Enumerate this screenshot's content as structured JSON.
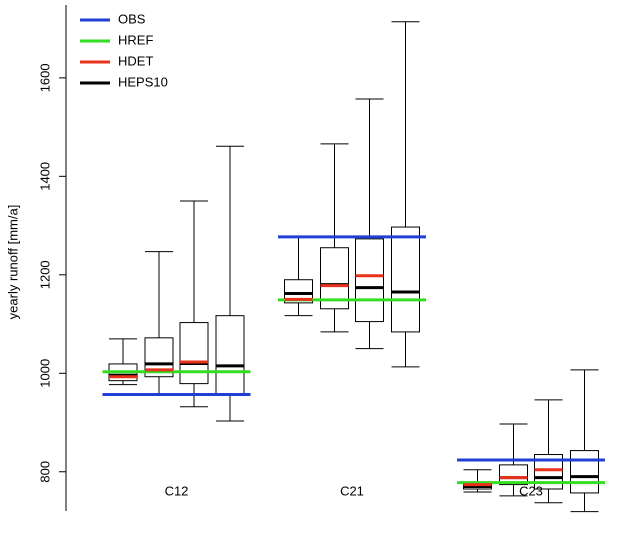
{
  "chart_data": {
    "type": "box",
    "ylabel": "yearly runoff [mm/a]",
    "categories": [
      "C12",
      "C21",
      "C23"
    ],
    "ylim": [
      700,
      1750
    ],
    "yticks": [
      800,
      1000,
      1200,
      1400,
      1600
    ],
    "legend": "top-left",
    "series": [
      {
        "name": "OBS",
        "color": "#1f3fd6",
        "values": [
          957,
          1277,
          824
        ]
      },
      {
        "name": "HREF",
        "color": "#33dd22",
        "values": [
          1003,
          1149,
          778
        ]
      },
      {
        "name": "HDET",
        "color": "#e8321e",
        "values": [
          [
            993,
            1007,
            1023,
            null
          ],
          [
            1150,
            1178,
            1198,
            null
          ],
          [
            774,
            788,
            804,
            null
          ]
        ]
      },
      {
        "name": "HEPS10",
        "color": "#000000",
        "boxes": [
          [
            {
              "low": 977,
              "q1": 985,
              "median": 996,
              "q3": 1019,
              "high": 1070
            },
            {
              "low": 957,
              "q1": 993,
              "median": 1019,
              "q3": 1072,
              "high": 1247
            },
            {
              "low": 932,
              "q1": 979,
              "median": 1020,
              "q3": 1103,
              "high": 1350
            },
            {
              "low": 903,
              "q1": 958,
              "median": 1015,
              "q3": 1117,
              "high": 1461
            }
          ],
          [
            {
              "low": 1117,
              "q1": 1143,
              "median": 1162,
              "q3": 1190,
              "high": 1277
            },
            {
              "low": 1084,
              "q1": 1131,
              "median": 1180,
              "q3": 1255,
              "high": 1466
            },
            {
              "low": 1050,
              "q1": 1105,
              "median": 1174,
              "q3": 1273,
              "high": 1557
            },
            {
              "low": 1013,
              "q1": 1084,
              "median": 1165,
              "q3": 1297,
              "high": 1714
            }
          ],
          [
            {
              "low": 759,
              "q1": 765,
              "median": 770,
              "q3": 778,
              "high": 804
            },
            {
              "low": 751,
              "q1": 774,
              "median": 788,
              "q3": 814,
              "high": 897
            },
            {
              "low": 737,
              "q1": 765,
              "median": 788,
              "q3": 835,
              "high": 946
            },
            {
              "low": 719,
              "q1": 757,
              "median": 790,
              "q3": 843,
              "high": 1007
            }
          ]
        ]
      }
    ]
  }
}
